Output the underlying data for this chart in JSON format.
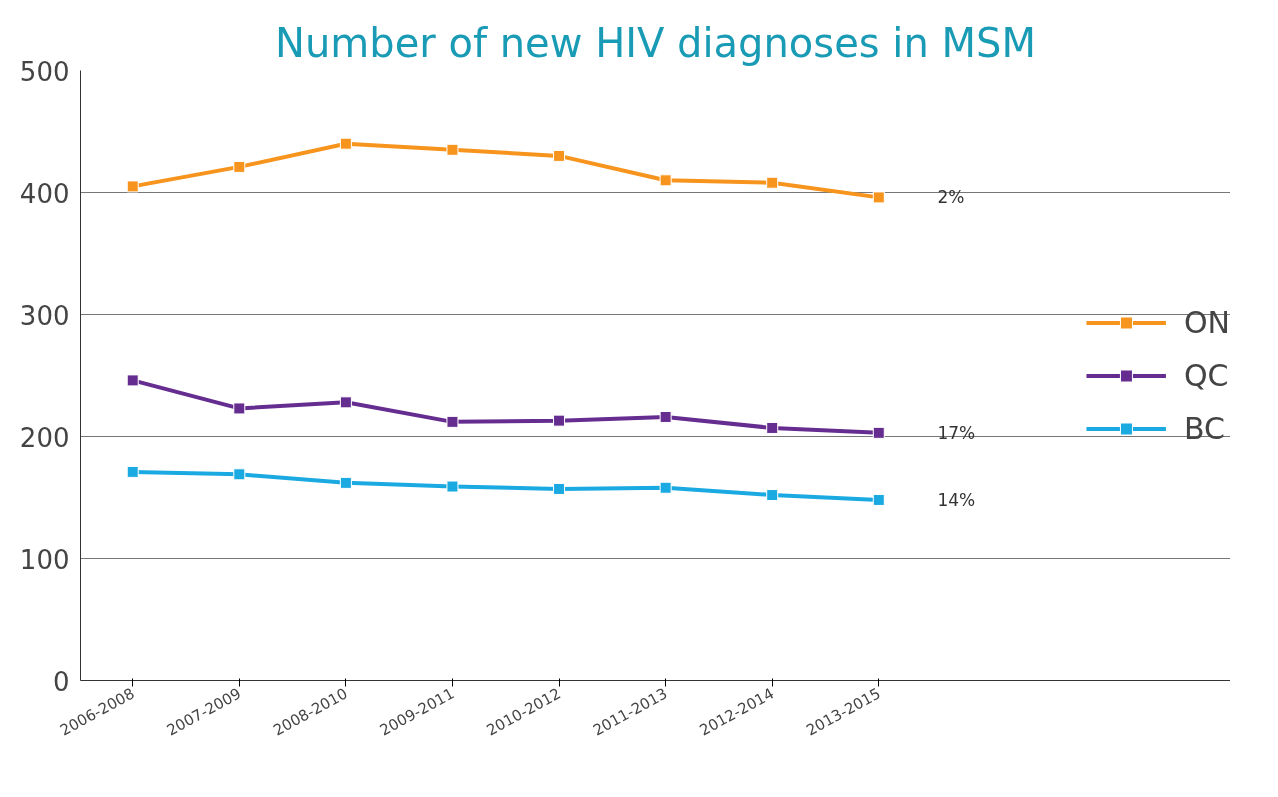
{
  "chart_data": {
    "type": "line",
    "title": "Number of new HIV diagnoses in MSM",
    "categories": [
      "2006-2008",
      "2007-2009",
      "2008-2010",
      "2009-2011",
      "2010-2012",
      "2011-2013",
      "2012-2014",
      "2013-2015"
    ],
    "series": [
      {
        "name": "ON",
        "color": "#f7941d",
        "values": [
          405,
          421,
          440,
          435,
          430,
          410,
          408,
          396
        ]
      },
      {
        "name": "QC",
        "color": "#662d91",
        "values": [
          246,
          223,
          228,
          212,
          213,
          216,
          207,
          203
        ]
      },
      {
        "name": "BC",
        "color": "#1ba9e1",
        "values": [
          171,
          169,
          162,
          159,
          157,
          158,
          152,
          148
        ]
      }
    ],
    "annotations": [
      "2%",
      "17%",
      "14%"
    ],
    "ylim": [
      0,
      500
    ],
    "yticks": [
      0,
      100,
      200,
      300,
      400,
      500
    ],
    "grid": "y",
    "legend": "right",
    "marker": "square",
    "line_style": "solid"
  }
}
